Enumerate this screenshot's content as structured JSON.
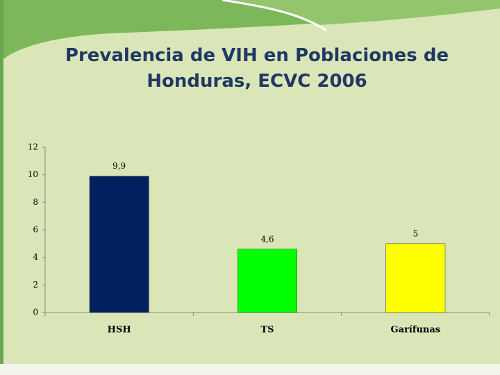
{
  "chart_data": {
    "type": "bar",
    "title": "Prevalencia de VIH en Poblaciones de Honduras, ECVC 2006",
    "categories": [
      "HSH",
      "TS",
      "Garífunas"
    ],
    "values": [
      9.9,
      4.6,
      5
    ],
    "value_labels": [
      "9,9",
      "4,6",
      "5"
    ],
    "colors": [
      "#002060",
      "#00ff00",
      "#ffff00"
    ],
    "ylim": [
      0,
      12
    ],
    "yticks": [
      0,
      2,
      4,
      6,
      8,
      10,
      12
    ],
    "grid": false
  }
}
